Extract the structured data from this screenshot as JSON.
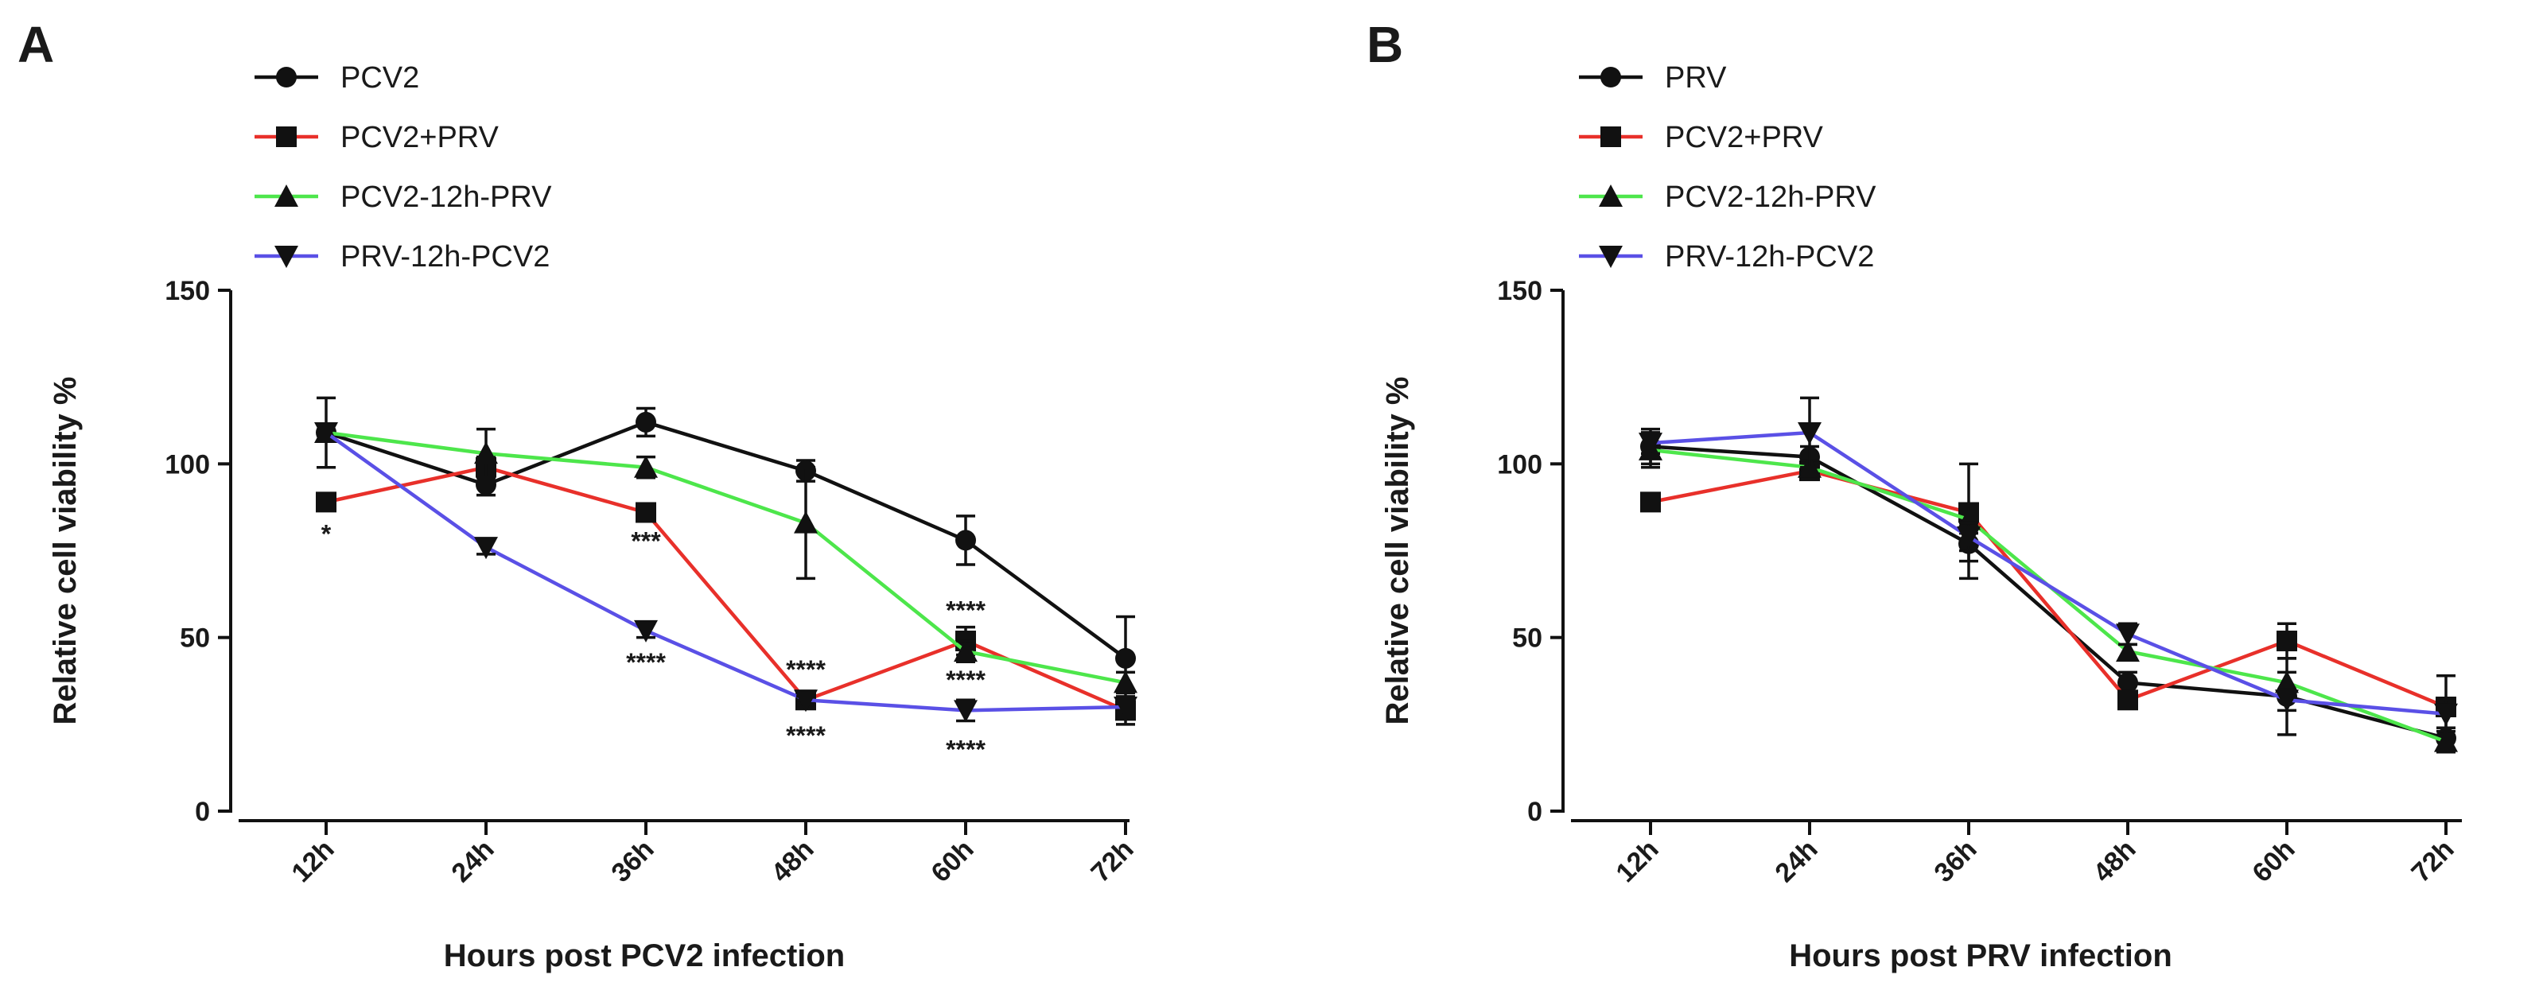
{
  "chart_data": [
    {
      "panel": "A",
      "type": "line",
      "xlabel": "Hours post PCV2 infection",
      "ylabel": "Relative cell viability %",
      "ylim": [
        0,
        150
      ],
      "yticks": [
        0,
        50,
        100,
        150
      ],
      "categories": [
        "12h",
        "24h",
        "36h",
        "48h",
        "60h",
        "72h"
      ],
      "legend_position": "top-left",
      "series": [
        {
          "name": "PCV2",
          "color": "#111111",
          "marker": "circle",
          "values": [
            109,
            94,
            112,
            98,
            78,
            44
          ],
          "errors": [
            10,
            3,
            4,
            3,
            7,
            12
          ]
        },
        {
          "name": "PCV2+PRV",
          "color": "#e8302a",
          "marker": "square",
          "values": [
            89,
            99,
            86,
            32,
            49,
            29
          ],
          "errors": [
            0,
            3,
            0,
            1,
            4,
            4
          ]
        },
        {
          "name": "PCV2-12h-PRV",
          "color": "#4de64b",
          "marker": "triangle-up",
          "values": [
            109,
            103,
            99,
            83,
            46,
            37
          ],
          "errors": [
            0,
            7,
            3,
            16,
            3,
            3
          ]
        },
        {
          "name": "PRV-12h-PCV2",
          "color": "#5a50e6",
          "marker": "triangle-down",
          "values": [
            109,
            76,
            52,
            32,
            29,
            30
          ],
          "errors": [
            0,
            2,
            2,
            1,
            3,
            2
          ]
        }
      ],
      "annotations": [
        {
          "category": "12h",
          "y": 80,
          "text": "*"
        },
        {
          "category": "36h",
          "y": 78,
          "text": "***"
        },
        {
          "category": "36h",
          "y": 43,
          "text": "****"
        },
        {
          "category": "48h",
          "y": 41,
          "text": "****"
        },
        {
          "category": "48h",
          "y": 22,
          "text": "****"
        },
        {
          "category": "60h",
          "y": 58,
          "text": "****"
        },
        {
          "category": "60h",
          "y": 38,
          "text": "****"
        },
        {
          "category": "60h",
          "y": 18,
          "text": "****"
        }
      ]
    },
    {
      "panel": "B",
      "type": "line",
      "xlabel": "Hours post PRV infection",
      "ylabel": "Relative cell viability %",
      "ylim": [
        0,
        150
      ],
      "yticks": [
        0,
        50,
        100,
        150
      ],
      "categories": [
        "12h",
        "24h",
        "36h",
        "48h",
        "60h",
        "72h"
      ],
      "legend_position": "top-left",
      "series": [
        {
          "name": "PRV",
          "color": "#111111",
          "marker": "circle",
          "values": [
            105,
            102,
            77,
            37,
            33,
            21
          ],
          "errors": [
            5,
            3,
            10,
            3,
            11,
            3
          ]
        },
        {
          "name": "PCV2+PRV",
          "color": "#e8302a",
          "marker": "square",
          "values": [
            89,
            98,
            86,
            32,
            49,
            30
          ],
          "errors": [
            0,
            2,
            14,
            2,
            5,
            9
          ]
        },
        {
          "name": "PCV2-12h-PRV",
          "color": "#4de64b",
          "marker": "triangle-up",
          "values": [
            104,
            99,
            84,
            46,
            37,
            20
          ],
          "errors": [
            5,
            2,
            4,
            2,
            3,
            3
          ]
        },
        {
          "name": "PRV-12h-PCV2",
          "color": "#5a50e6",
          "marker": "triangle-down",
          "values": [
            106,
            109,
            79,
            51,
            32,
            28
          ],
          "errors": [
            3,
            10,
            4,
            3,
            3,
            4
          ]
        }
      ],
      "annotations": []
    }
  ]
}
